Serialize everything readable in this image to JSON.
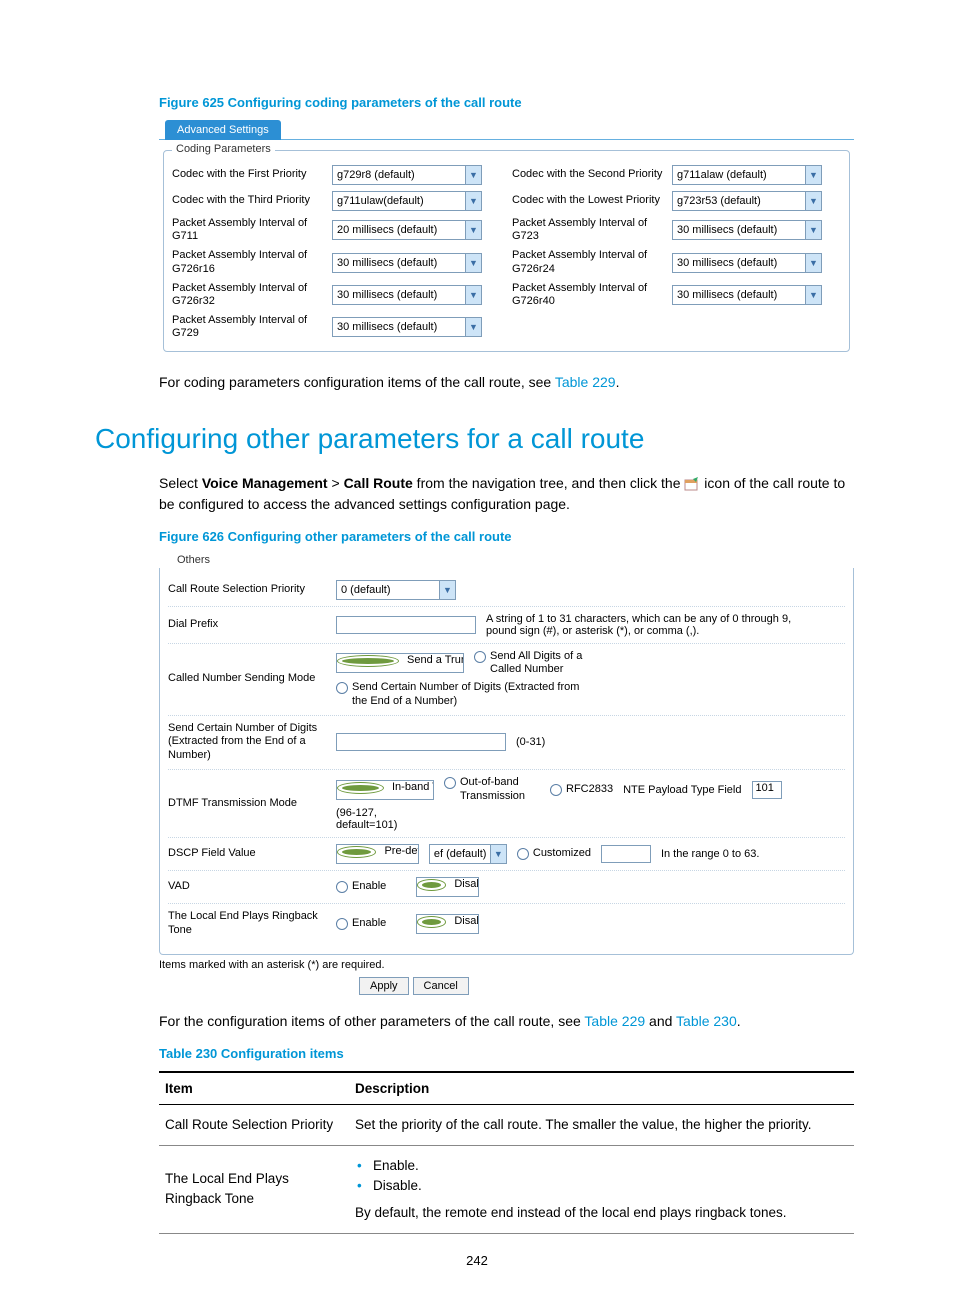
{
  "figure625": {
    "title": "Figure 625 Configuring coding parameters of the call route",
    "tab": "Advanced Settings",
    "legend": "Coding Parameters",
    "rows": [
      {
        "l1": "Codec with the First Priority",
        "v1": "g729r8 (default)",
        "l2": "Codec with the Second Priority",
        "v2": "g711alaw (default)"
      },
      {
        "l1": "Codec with the Third Priority",
        "v1": "g711ulaw(default)",
        "l2": "Codec with the Lowest Priority",
        "v2": "g723r53 (default)"
      },
      {
        "l1": "Packet Assembly Interval of G711",
        "v1": "20 millisecs (default)",
        "l2": "Packet Assembly Interval of G723",
        "v2": "30 millisecs (default)"
      },
      {
        "l1": "Packet Assembly Interval of G726r16",
        "v1": "30 millisecs (default)",
        "l2": "Packet Assembly Interval of G726r24",
        "v2": "30 millisecs (default)"
      },
      {
        "l1": "Packet Assembly Interval of G726r32",
        "v1": "30 millisecs (default)",
        "l2": "Packet Assembly Interval of G726r40",
        "v2": "30 millisecs (default)"
      },
      {
        "l1": "Packet Assembly Interval of G729",
        "v1": "30 millisecs (default)",
        "l2": "",
        "v2": ""
      }
    ]
  },
  "bodyText1_a": "For coding parameters configuration items of the call route, see ",
  "bodyText1_link": "Table 229",
  "bodyText1_b": ".",
  "sectionHeading": "Configuring other parameters for a call route",
  "bodyText2_a": "Select ",
  "bodyText2_b1": "Voice Management",
  "bodyText2_gt": " > ",
  "bodyText2_b2": "Call Route",
  "bodyText2_c": " from the navigation tree, and then click the ",
  "bodyText2_d": " icon of the call route to be configured to access the advanced settings configuration page.",
  "figure626": {
    "title": "Figure 626 Configuring other parameters of the call route",
    "legend": "Others",
    "priority_label": "Call Route Selection Priority",
    "priority_value": "0 (default)",
    "dialprefix_label": "Dial Prefix",
    "dialprefix_hint": "A string of 1 to 31 characters, which can be any of 0 through 9, pound sign (#), or asterisk (*), or comma (,).",
    "sendmode_label": "Called Number Sending Mode",
    "sendmode_opt1": "Send a Truncated Called Number",
    "sendmode_opt2": "Send All Digits of a Called Number",
    "sendmode_opt3": "Send Certain Number of Digits (Extracted from the End of a Number)",
    "digits_label": "Send Certain Number of Digits (Extracted from the End of a Number)",
    "digits_hint": "(0-31)",
    "dtmf_label": "DTMF Transmission Mode",
    "dtmf_opt1": "In-band Transmission",
    "dtmf_opt2": "Out-of-band Transmission",
    "dtmf_opt3": "RFC2833",
    "dtmf_nte_label": "NTE Payload Type Field",
    "dtmf_nte_value": "101",
    "dtmf_nte_hint": "(96-127, default=101)",
    "dscp_label": "DSCP Field Value",
    "dscp_opt1": "Pre-defined",
    "dscp_select": "ef (default)",
    "dscp_opt2": "Customized",
    "dscp_hint": "In the range 0 to 63.",
    "vad_label": "VAD",
    "enable": "Enable",
    "disable": "Disable",
    "ringback_label": "The Local End Plays Ringback Tone",
    "footnote": "Items marked with an asterisk (*) are required.",
    "apply": "Apply",
    "cancel": "Cancel"
  },
  "bodyText3_a": "For the configuration items of other parameters of the call route, see ",
  "bodyText3_link1": "Table 229",
  "bodyText3_mid": " and ",
  "bodyText3_link2": "Table 230",
  "bodyText3_b": ".",
  "table230": {
    "title": "Table 230 Configuration items",
    "h1": "Item",
    "h2": "Description",
    "r1c1": "Call Route Selection Priority",
    "r1c2": "Set the priority of the call route. The smaller the value, the higher the priority.",
    "r2c1": "The Local End Plays Ringback Tone",
    "r2b1": "Enable.",
    "r2b2": "Disable.",
    "r2c2b": "By default, the remote end instead of the local end plays ringback tones."
  },
  "pageNum": "242"
}
